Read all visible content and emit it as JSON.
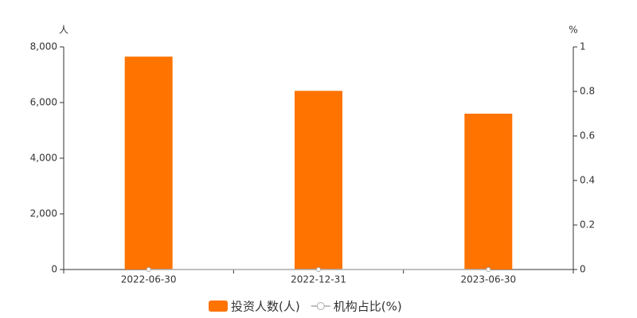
{
  "chart_data": {
    "type": "bar",
    "y_unit": "人",
    "y2_unit": "%",
    "categories": [
      "2022-06-30",
      "2022-12-31",
      "2023-06-30"
    ],
    "series": [
      {
        "name": "投资人数(人)",
        "color": "#ff7300",
        "values": [
          7650,
          6420,
          5600
        ]
      },
      {
        "name": "机构占比(%)",
        "color": "#aaaaaa",
        "type": "line",
        "axis": "y2",
        "values": [
          0,
          0,
          0
        ]
      }
    ],
    "ylim": [
      0,
      8000
    ],
    "yticks": [
      0,
      {
        "value": 2000,
        "label": "2,000"
      },
      {
        "value": 4000,
        "label": "4,000"
      },
      {
        "value": 6000,
        "label": "6,000"
      },
      {
        "value": 8000,
        "label": "8,000"
      }
    ],
    "y2lim": [
      0,
      1
    ],
    "y2ticks": [
      0,
      0.2,
      0.4,
      0.6,
      0.8,
      1
    ],
    "legend": "bottom"
  }
}
